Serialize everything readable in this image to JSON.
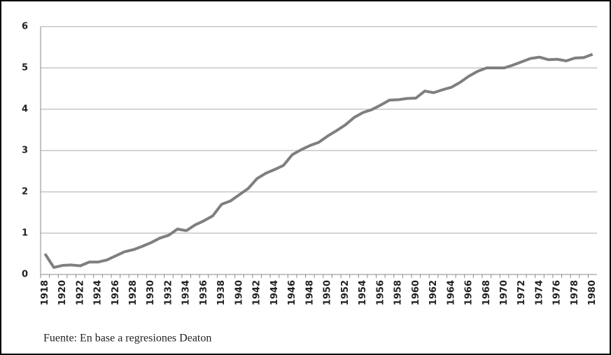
{
  "chart_data": {
    "type": "line",
    "categories": [
      "1918",
      null,
      "1920",
      null,
      "1922",
      null,
      "1924",
      null,
      "1926",
      null,
      "1928",
      null,
      "1930",
      null,
      "1932",
      null,
      "1934",
      null,
      "1936",
      null,
      "1938",
      null,
      "1940",
      null,
      "1942",
      null,
      "1944",
      null,
      "1946",
      null,
      "1948",
      null,
      "1950",
      null,
      "1952",
      null,
      "1954",
      null,
      "1956",
      null,
      "1958",
      null,
      "1960",
      null,
      "1962",
      null,
      "1964",
      null,
      "1966",
      null,
      "1968",
      null,
      "1970",
      null,
      "1972",
      null,
      "1974",
      null,
      "1976",
      null,
      "1978",
      null,
      "1980"
    ],
    "values": [
      0.5,
      0.17,
      0.22,
      0.23,
      0.21,
      0.3,
      0.3,
      0.35,
      0.45,
      0.55,
      0.6,
      0.68,
      0.77,
      0.88,
      0.95,
      1.1,
      1.06,
      1.2,
      1.3,
      1.42,
      1.7,
      1.78,
      1.93,
      2.08,
      2.32,
      2.45,
      2.54,
      2.64,
      2.9,
      3.02,
      3.12,
      3.2,
      3.35,
      3.48,
      3.62,
      3.8,
      3.92,
      3.99,
      4.1,
      4.22,
      4.23,
      4.26,
      4.27,
      4.44,
      4.4,
      4.47,
      4.53,
      4.65,
      4.8,
      4.92,
      5.0,
      5.0,
      5.0,
      5.07,
      5.15,
      5.23,
      5.26,
      5.2,
      5.21,
      5.17,
      5.24,
      5.25,
      5.33
    ],
    "color": "#7f7f7f",
    "ylim": [
      0,
      6
    ],
    "yticks": [
      0,
      1,
      2,
      3,
      4,
      5,
      6
    ],
    "grid": true,
    "note": "Fuente: En base a regresiones Deaton"
  }
}
